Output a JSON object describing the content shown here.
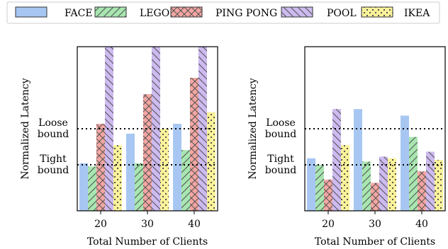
{
  "legend": {
    "items": [
      {
        "label": "FACE",
        "color": "#a7c7f2",
        "pattern": "none"
      },
      {
        "label": "LEGO",
        "color": "#a8e6b0",
        "pattern": "diagonal-right"
      },
      {
        "label": "PING PONG",
        "color": "#f4a6a2",
        "pattern": "cross-hatch"
      },
      {
        "label": "POOL",
        "color": "#cdbaf0",
        "pattern": "diagonal-left"
      },
      {
        "label": "IKEA",
        "color": "#fbf39a",
        "pattern": "dots"
      }
    ]
  },
  "reference_lines": {
    "loose_label_1": "Loose",
    "loose_label_2": "bound",
    "tight_label_1": "Tight",
    "tight_label_2": "bound"
  },
  "chart_data": [
    {
      "type": "bar",
      "xlabel": "Total Number of Clients",
      "ylabel": "Normalized Latency",
      "categories": [
        "20",
        "30",
        "40"
      ],
      "ylim": [
        0,
        10
      ],
      "loose_bound": 5.0,
      "tight_bound": 2.8,
      "series": [
        {
          "name": "FACE",
          "values": [
            2.9,
            4.7,
            5.3
          ]
        },
        {
          "name": "LEGO",
          "values": [
            2.7,
            2.9,
            3.7
          ]
        },
        {
          "name": "PING PONG",
          "values": [
            5.3,
            7.1,
            8.1
          ]
        },
        {
          "name": "POOL",
          "values": [
            10.0,
            10.0,
            10.0
          ]
        },
        {
          "name": "IKEA",
          "values": [
            4.0,
            5.0,
            6.0
          ]
        }
      ]
    },
    {
      "type": "bar",
      "xlabel": "Total Number of Clients",
      "ylabel": "Normalized Latency",
      "categories": [
        "20",
        "30",
        "40"
      ],
      "ylim": [
        0,
        10
      ],
      "loose_bound": 5.0,
      "tight_bound": 2.8,
      "series": [
        {
          "name": "FACE",
          "values": [
            3.2,
            6.2,
            5.8
          ]
        },
        {
          "name": "LEGO",
          "values": [
            2.8,
            3.0,
            4.5
          ]
        },
        {
          "name": "PING PONG",
          "values": [
            1.9,
            1.7,
            2.4
          ]
        },
        {
          "name": "POOL",
          "values": [
            6.2,
            3.3,
            3.6
          ]
        },
        {
          "name": "IKEA",
          "values": [
            4.0,
            3.2,
            3.1
          ]
        }
      ]
    }
  ]
}
